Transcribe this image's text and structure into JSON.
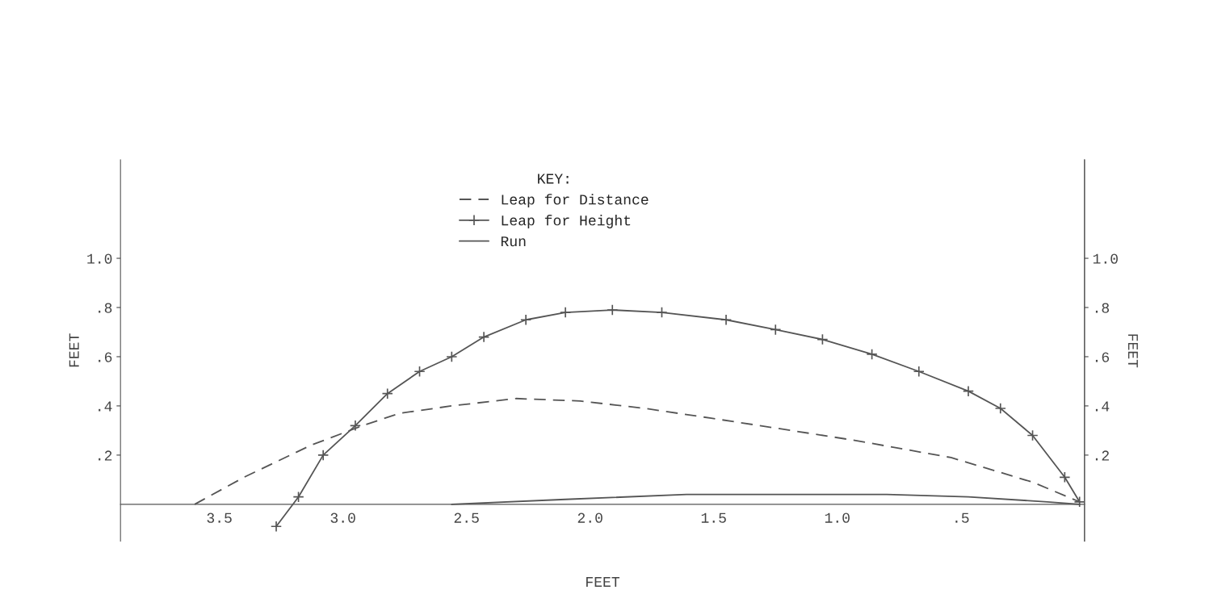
{
  "chart_data": {
    "type": "line",
    "xlabel": "FEET",
    "ylabel": "FEET",
    "y2label": "FEET",
    "legend_title": "KEY:",
    "xlim": [
      3.9,
      0
    ],
    "ylim": [
      -0.15,
      1.4
    ],
    "y2lim": [
      -0.15,
      1.4
    ],
    "xticks": [
      3.5,
      {
        "value": 3,
        "label": "3.0"
      },
      2.5,
      {
        "value": 2,
        "label": "2.0"
      },
      1.5,
      {
        "value": 1,
        "label": "1.0"
      },
      {
        "value": 0.5,
        "label": ".5"
      }
    ],
    "yticks": [
      {
        "value": 0.2,
        "label": ".2"
      },
      {
        "value": 0.4,
        "label": ".4"
      },
      {
        "value": 0.6,
        "label": ".6"
      },
      {
        "value": 0.8,
        "label": ".8"
      },
      {
        "value": 1,
        "label": "1.0"
      }
    ],
    "y2ticks": [
      {
        "value": 0.2,
        "label": ".2"
      },
      {
        "value": 0.4,
        "label": ".4"
      },
      {
        "value": 0.6,
        "label": ".6"
      },
      {
        "value": 0.8,
        "label": ".8"
      },
      {
        "value": 1,
        "label": "1.0"
      }
    ],
    "legend": "top",
    "grid": false,
    "series": [
      {
        "name": "Leap for Distance",
        "color": "#555555",
        "line_style": "dashed",
        "marker": "none",
        "x": [
          3.6,
          3.4,
          3.13,
          2.92,
          2.77,
          2.56,
          2.3,
          2.04,
          1.78,
          1.51,
          1.25,
          0.93,
          0.54,
          0.21,
          0.02
        ],
        "values": [
          0,
          0.11,
          0.24,
          0.32,
          0.37,
          0.4,
          0.43,
          0.42,
          0.39,
          0.35,
          0.31,
          0.26,
          0.19,
          0.09,
          0.01
        ]
      },
      {
        "name": "Leap for Height",
        "color": "#555555",
        "line_style": "solid",
        "marker": "cross",
        "x": [
          3.27,
          3.18,
          3.08,
          2.95,
          2.82,
          2.69,
          2.56,
          2.43,
          2.26,
          2.1,
          1.91,
          1.71,
          1.45,
          1.25,
          1.06,
          0.86,
          0.67,
          0.47,
          0.34,
          0.21,
          0.08,
          0.02
        ],
        "values": [
          -0.09,
          0.03,
          0.2,
          0.32,
          0.45,
          0.54,
          0.6,
          0.68,
          0.75,
          0.78,
          0.79,
          0.78,
          0.75,
          0.71,
          0.67,
          0.61,
          0.54,
          0.46,
          0.39,
          0.28,
          0.11,
          0.01
        ]
      },
      {
        "name": "Run",
        "color": "#555555",
        "line_style": "solid",
        "marker": "none",
        "x": [
          2.56,
          2.1,
          1.61,
          1.12,
          0.8,
          0.47,
          0.15,
          0.02
        ],
        "values": [
          0,
          0.02,
          0.04,
          0.04,
          0.04,
          0.03,
          0.01,
          0
        ]
      }
    ]
  }
}
